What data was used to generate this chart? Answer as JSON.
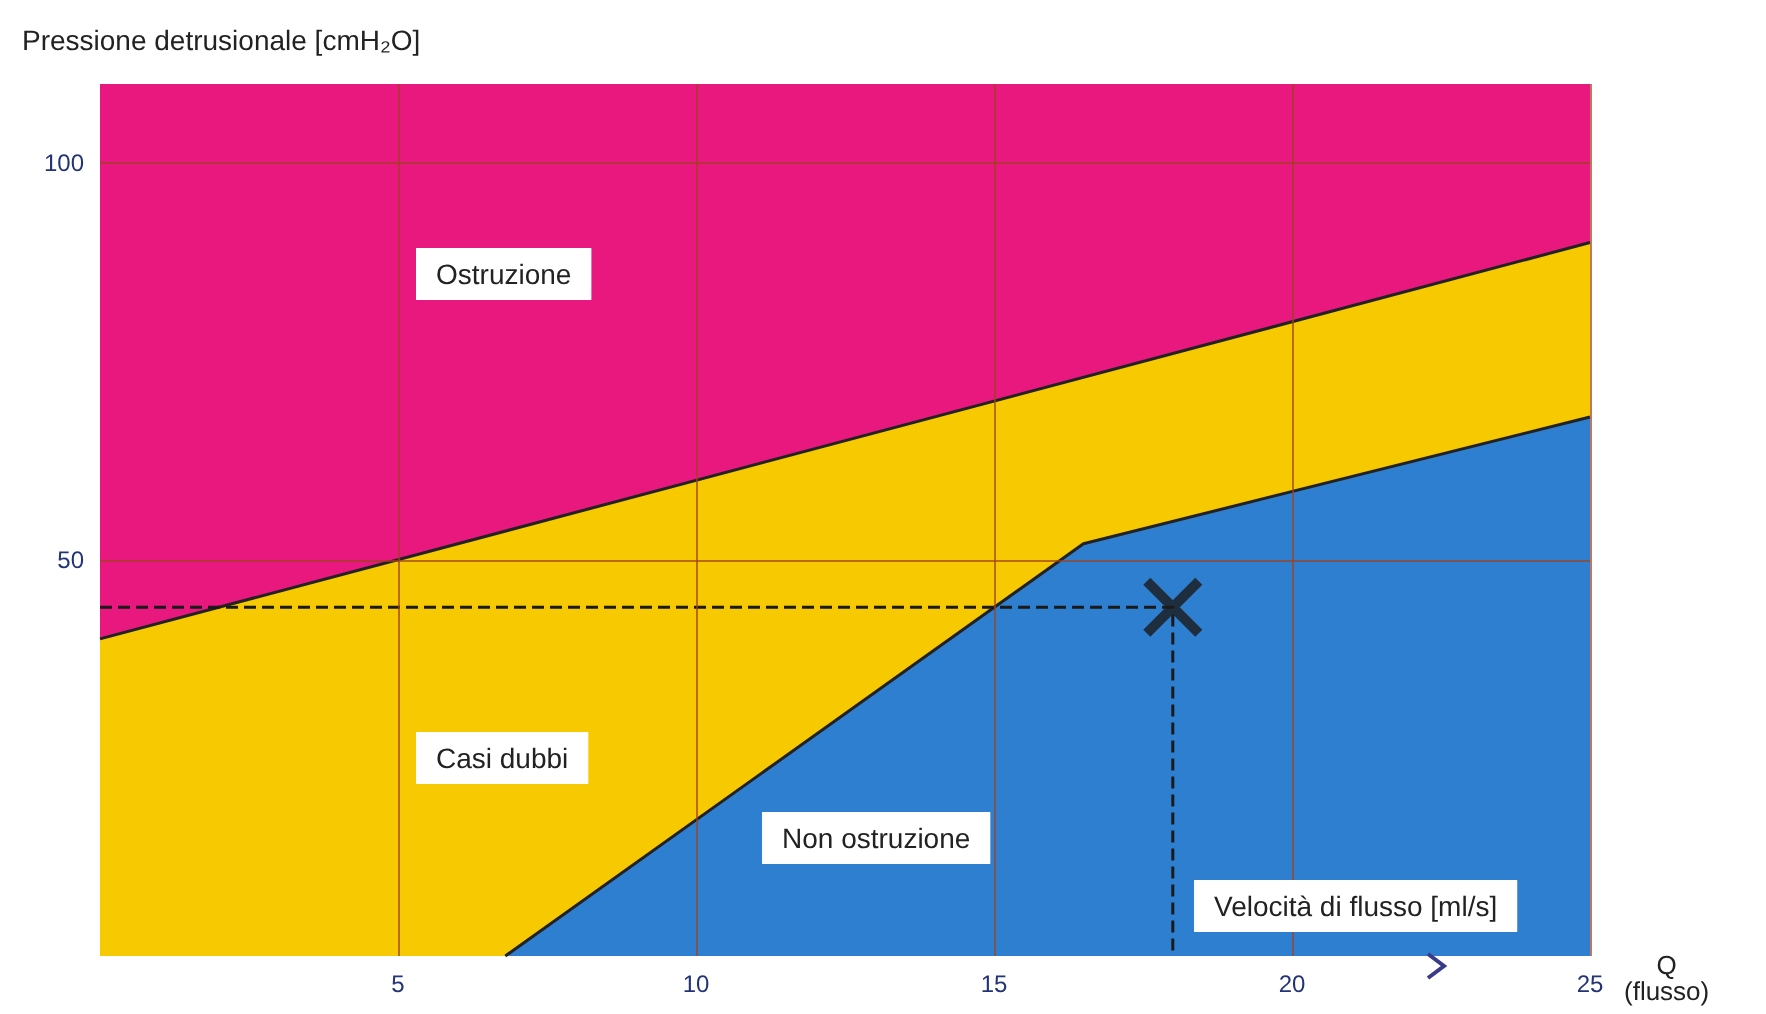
{
  "chart_data": {
    "type": "area",
    "ylabel": "Pressione detrusionale [cmH₂O]",
    "xlabel": "Q\n(flusso)",
    "xlim": [
      0,
      25
    ],
    "ylim": [
      0,
      110
    ],
    "xticks": [
      5,
      10,
      15,
      20,
      25
    ],
    "yticks": [
      50,
      100
    ],
    "grid": true,
    "bands": [
      {
        "axis": "y",
        "from": 40,
        "to": 110,
        "color": "#e8187e"
      }
    ],
    "series": [
      {
        "color": "#f7c900",
        "x": [
          0,
          25
        ],
        "values": [
          40,
          90
        ]
      },
      {
        "color": "#2f7fd0",
        "x": [
          6.8,
          16.5,
          25
        ],
        "values": [
          0,
          52,
          68
        ]
      },
      {
        "type": "line",
        "color": "#1a1a1a",
        "x": [
          0,
          18,
          18
        ],
        "values": [
          44,
          44,
          0
        ],
        "line_style": "dashed",
        "marker": "none"
      },
      {
        "type": "scatter",
        "color": "#1a1a1a",
        "x": [
          18
        ],
        "values": [
          44
        ],
        "marker": "cross"
      }
    ],
    "annotations": [
      "Ostruzione",
      "Casi dubbi",
      "Non ostruzione",
      "Velocità di flusso [ml/s]"
    ]
  }
}
